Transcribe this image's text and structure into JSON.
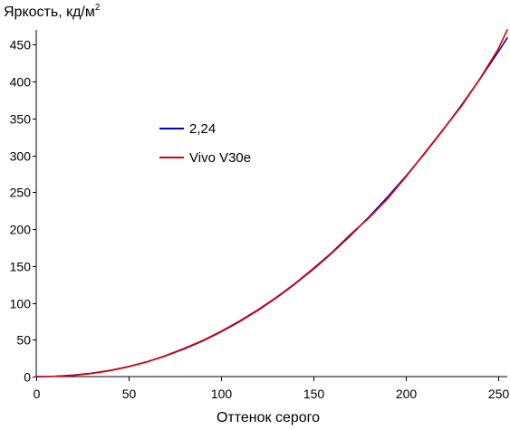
{
  "chart_data": {
    "type": "line",
    "title": "",
    "ylabel": "Яркость, кд/м",
    "ylabel_superscript": "2",
    "xlabel": "Оттенок серого",
    "xlim": [
      0,
      255
    ],
    "ylim": [
      0,
      470
    ],
    "x_ticks": [
      0,
      50,
      100,
      150,
      200,
      250
    ],
    "y_ticks": [
      0,
      50,
      100,
      150,
      200,
      250,
      300,
      350,
      400,
      450
    ],
    "grid": false,
    "legend_position": "center-left",
    "series": [
      {
        "name": "2,24",
        "color": "#0000c0",
        "x": [
          0,
          10,
          20,
          30,
          40,
          50,
          60,
          70,
          80,
          90,
          100,
          110,
          120,
          130,
          140,
          150,
          160,
          170,
          180,
          190,
          200,
          210,
          220,
          230,
          240,
          250,
          255
        ],
        "y": [
          0,
          0.4,
          1.9,
          4.5,
          8.4,
          13.6,
          20.1,
          28,
          37.4,
          48.2,
          60.5,
          74.4,
          89.8,
          106.8,
          125.4,
          145.6,
          167.4,
          190.9,
          216.1,
          242.9,
          271.4,
          301.6,
          333.6,
          367.3,
          402.7,
          439.9,
          459
        ]
      },
      {
        "name": "Vivo V30e",
        "color": "#e00000",
        "x": [
          0,
          10,
          20,
          30,
          40,
          50,
          60,
          70,
          80,
          90,
          100,
          110,
          120,
          130,
          140,
          150,
          160,
          170,
          180,
          190,
          200,
          210,
          220,
          230,
          240,
          250,
          255
        ],
        "y": [
          0,
          0.3,
          1.6,
          4.2,
          8.1,
          13.4,
          20,
          28.4,
          38.2,
          48.8,
          61.2,
          75.3,
          90.6,
          107.5,
          126.1,
          146.6,
          168.2,
          192.6,
          214.8,
          240.6,
          270.5,
          302.3,
          334.1,
          366,
          403.1,
          443.6,
          470
        ]
      }
    ]
  }
}
